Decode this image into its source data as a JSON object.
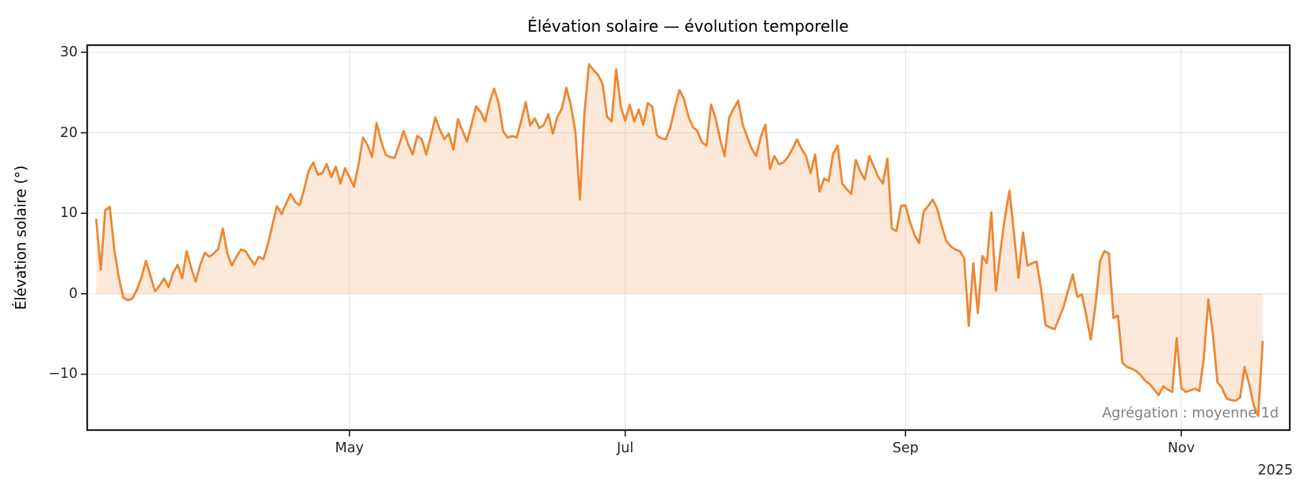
{
  "title": "Élévation solaire — évolution temporelle",
  "ylabel": "Élévation solaire (°)",
  "annotation": "Agrégation : moyenne 1d",
  "year_label": "2025",
  "axes": {
    "x_tick_labels": [
      "May",
      "Jul",
      "Sep",
      "Nov"
    ],
    "y_tick_labels": [
      "30",
      "20",
      "10",
      "0",
      "−10"
    ]
  },
  "colors": {
    "line": "#ed8733",
    "fill_opacity": 0.18,
    "grid": "#e6e6e6",
    "spine": "#1f1f1f",
    "tick_text": "#262626",
    "annotation_text": "#808080",
    "background": "#ffffff"
  },
  "chart_data": {
    "type": "line",
    "title": "Élévation solaire — évolution temporelle",
    "xlabel": "",
    "ylabel": "Élévation solaire (°)",
    "annotation": "Agrégation : moyenne 1d",
    "year": "2025",
    "aggregation": "moyenne 1d",
    "grid": true,
    "legend": false,
    "fill": "between_line_and_zero",
    "x_start": "2025-03-06",
    "x_end": "2025-11-19",
    "x_freq": "1d",
    "xlim": [
      "2025-03-04",
      "2025-11-25"
    ],
    "ylim": [
      -16.94,
      30.89
    ],
    "x_tick_dates": [
      "2025-05-01",
      "2025-07-01",
      "2025-09-01",
      "2025-11-01"
    ],
    "x_tick_labels": [
      "May",
      "Jul",
      "Sep",
      "Nov"
    ],
    "y_ticks": [
      30,
      20,
      10,
      0,
      -10
    ],
    "values": [
      9.2,
      3.0,
      10.4,
      10.8,
      5.5,
      2.0,
      -0.5,
      -0.8,
      -0.6,
      0.5,
      2.0,
      4.1,
      2.2,
      0.3,
      1.0,
      1.9,
      0.8,
      2.6,
      3.6,
      1.9,
      5.3,
      3.2,
      1.5,
      3.6,
      5.1,
      4.6,
      5.0,
      5.6,
      8.1,
      5.0,
      3.5,
      4.6,
      5.5,
      5.3,
      4.4,
      3.6,
      4.6,
      4.3,
      6.2,
      8.6,
      10.9,
      9.9,
      11.2,
      12.4,
      11.4,
      11.0,
      13.0,
      15.3,
      16.3,
      14.8,
      15.0,
      16.1,
      14.5,
      15.8,
      13.7,
      15.6,
      14.5,
      13.3,
      16.0,
      19.4,
      18.5,
      17.0,
      21.2,
      19.0,
      17.3,
      17.0,
      16.9,
      18.5,
      20.2,
      18.6,
      17.3,
      19.6,
      19.2,
      17.3,
      19.5,
      21.9,
      20.4,
      19.2,
      19.9,
      17.9,
      21.7,
      20.3,
      18.9,
      21.0,
      23.3,
      22.6,
      21.4,
      23.8,
      25.5,
      23.7,
      20.2,
      19.4,
      19.6,
      19.4,
      21.5,
      23.8,
      20.9,
      21.8,
      20.6,
      21.0,
      22.3,
      19.9,
      22.0,
      23.0,
      25.6,
      23.4,
      20.1,
      11.7,
      22.5,
      28.5,
      27.8,
      27.2,
      26.1,
      22.0,
      21.4,
      27.9,
      23.3,
      21.5,
      23.5,
      21.4,
      22.9,
      21.0,
      23.7,
      23.2,
      19.7,
      19.3,
      19.2,
      20.7,
      23.2,
      25.3,
      24.2,
      22.0,
      20.7,
      20.2,
      18.8,
      18.4,
      23.5,
      21.8,
      19.2,
      17.1,
      21.9,
      23.0,
      24.0,
      21.0,
      19.5,
      18.0,
      17.1,
      19.5,
      21.0,
      15.5,
      17.1,
      16.1,
      16.3,
      17.0,
      18.0,
      19.2,
      18.0,
      17.1,
      15.0,
      17.3,
      12.7,
      14.3,
      14.0,
      17.4,
      18.4,
      13.7,
      13.0,
      12.4,
      16.6,
      15.2,
      14.2,
      17.1,
      15.8,
      14.5,
      13.7,
      16.8,
      8.1,
      7.8,
      10.9,
      11.0,
      8.9,
      7.3,
      6.3,
      10.2,
      10.9,
      11.7,
      10.6,
      8.4,
      6.6,
      5.9,
      5.5,
      5.3,
      4.4,
      -4.0,
      3.8,
      -2.4,
      4.7,
      3.8,
      10.1,
      0.4,
      5.3,
      9.5,
      12.8,
      7.5,
      2.0,
      7.6,
      3.5,
      3.8,
      4.0,
      0.6,
      -3.9,
      -4.2,
      -4.4,
      -3.0,
      -1.6,
      0.5,
      2.4,
      -0.4,
      -0.1,
      -2.8,
      -5.7,
      -1.5,
      4.0,
      5.3,
      5.0,
      -3.0,
      -2.7,
      -8.6,
      -9.1,
      -9.3,
      -9.6,
      -10.1,
      -10.8,
      -11.2,
      -11.9,
      -12.6,
      -11.5,
      -11.9,
      -12.2,
      -5.5,
      -11.7,
      -12.2,
      -12.0,
      -11.8,
      -12.1,
      -8.0,
      -0.7,
      -5.0,
      -11.0,
      -11.7,
      -13.0,
      -13.2,
      -13.3,
      -12.9,
      -9.1,
      -11.2,
      -13.8,
      -15.2,
      -6.0
    ]
  }
}
